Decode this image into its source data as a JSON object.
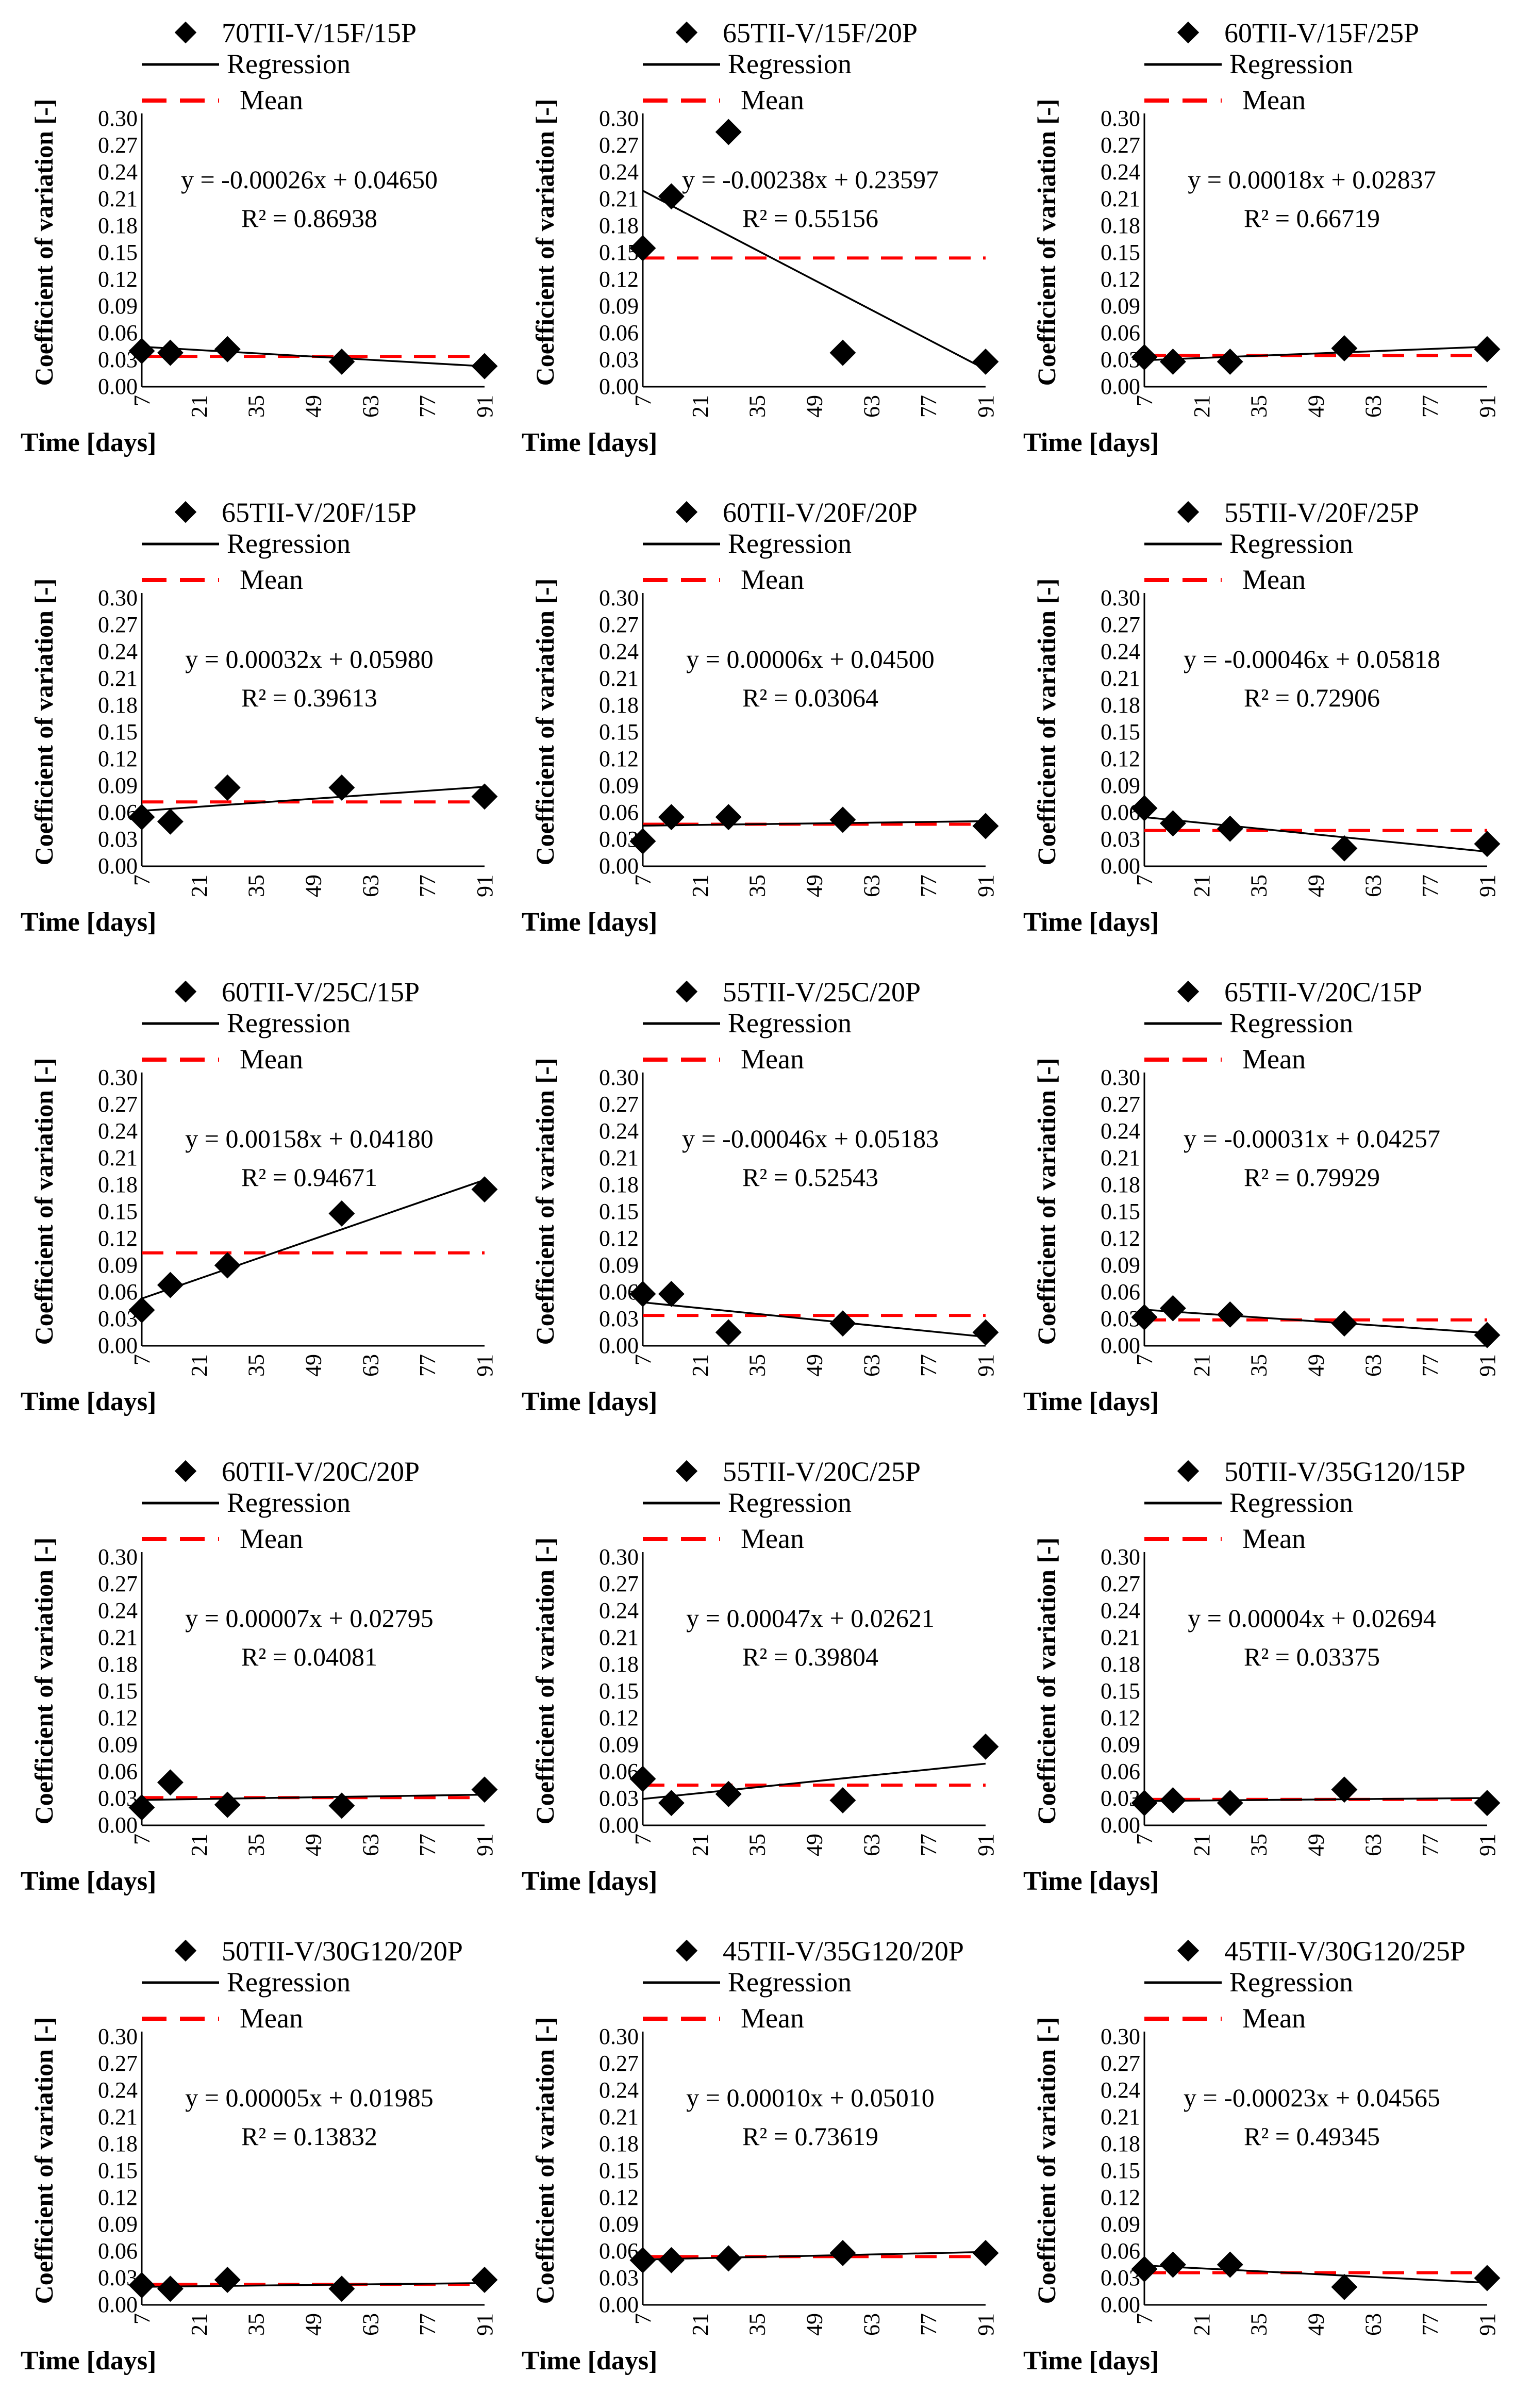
{
  "legend": {
    "points": "",
    "regression": "Regression",
    "mean": "Mean"
  },
  "axis": {
    "ylabel": "Coefficient of variation [-]",
    "xlabel": "Time [days]",
    "yticks": [
      "0.00",
      "0.03",
      "0.06",
      "0.09",
      "0.12",
      "0.15",
      "0.18",
      "0.21",
      "0.24",
      "0.27",
      "0.30"
    ],
    "xticks": [
      "7",
      "21",
      "35",
      "49",
      "63",
      "77",
      "91"
    ]
  },
  "colors": {
    "points": "#000000",
    "regression": "#000000",
    "mean": "#ff0000"
  },
  "chart_data": [
    {
      "type": "scatter",
      "title": "70TII-V/15F/15P",
      "xlabel": "Time [days]",
      "ylabel": "Coefficient of variation [-]",
      "xlim": [
        7,
        91
      ],
      "ylim": [
        0,
        0.3
      ],
      "x": [
        7,
        14,
        28,
        56,
        91
      ],
      "y": [
        0.04,
        0.038,
        0.042,
        0.028,
        0.023
      ],
      "regression": {
        "slope": -0.00026,
        "intercept": 0.0465,
        "equation": "y = -0.00026x + 0.04650",
        "r2": "R² = 0.86938"
      },
      "mean": 0.034
    },
    {
      "type": "scatter",
      "title": "65TII-V/15F/20P",
      "xlabel": "Time [days]",
      "ylabel": "Coefficient of variation [-]",
      "xlim": [
        7,
        91
      ],
      "ylim": [
        0,
        0.3
      ],
      "x": [
        7,
        14,
        28,
        56,
        91
      ],
      "y": [
        0.155,
        0.213,
        0.285,
        0.038,
        0.028
      ],
      "regression": {
        "slope": -0.00238,
        "intercept": 0.23597,
        "equation": "y = -0.00238x + 0.23597",
        "r2": "R² = 0.55156"
      },
      "mean": 0.144
    },
    {
      "type": "scatter",
      "title": "60TII-V/15F/25P",
      "xlabel": "Time [days]",
      "ylabel": "Coefficient of variation [-]",
      "xlim": [
        7,
        91
      ],
      "ylim": [
        0,
        0.3
      ],
      "x": [
        7,
        14,
        28,
        56,
        91
      ],
      "y": [
        0.033,
        0.028,
        0.028,
        0.043,
        0.042
      ],
      "regression": {
        "slope": 0.00018,
        "intercept": 0.02837,
        "equation": "y = 0.00018x + 0.02837",
        "r2": "R² = 0.66719"
      },
      "mean": 0.035
    },
    {
      "type": "scatter",
      "title": "65TII-V/20F/15P",
      "xlabel": "Time [days]",
      "ylabel": "Coefficient of variation [-]",
      "xlim": [
        7,
        91
      ],
      "ylim": [
        0,
        0.3
      ],
      "x": [
        7,
        14,
        28,
        56,
        91
      ],
      "y": [
        0.055,
        0.05,
        0.088,
        0.088,
        0.078
      ],
      "regression": {
        "slope": 0.00032,
        "intercept": 0.0598,
        "equation": "y = 0.00032x + 0.05980",
        "r2": "R² = 0.39613"
      },
      "mean": 0.072
    },
    {
      "type": "scatter",
      "title": "60TII-V/20F/20P",
      "xlabel": "Time [days]",
      "ylabel": "Coefficient of variation [-]",
      "xlim": [
        7,
        91
      ],
      "ylim": [
        0,
        0.3
      ],
      "x": [
        7,
        14,
        28,
        56,
        91
      ],
      "y": [
        0.028,
        0.055,
        0.055,
        0.052,
        0.045
      ],
      "regression": {
        "slope": 6e-05,
        "intercept": 0.045,
        "equation": "y = 0.00006x + 0.04500",
        "r2": "R² = 0.03064"
      },
      "mean": 0.047
    },
    {
      "type": "scatter",
      "title": "55TII-V/20F/25P",
      "xlabel": "Time [days]",
      "ylabel": "Coefficient of variation [-]",
      "xlim": [
        7,
        91
      ],
      "ylim": [
        0,
        0.3
      ],
      "x": [
        7,
        14,
        28,
        56,
        91
      ],
      "y": [
        0.065,
        0.048,
        0.042,
        0.02,
        0.025
      ],
      "regression": {
        "slope": -0.00046,
        "intercept": 0.05818,
        "equation": "y = -0.00046x + 0.05818",
        "r2": "R² = 0.72906"
      },
      "mean": 0.04
    },
    {
      "type": "scatter",
      "title": "60TII-V/25C/15P",
      "xlabel": "Time [days]",
      "ylabel": "Coefficient of variation [-]",
      "xlim": [
        7,
        91
      ],
      "ylim": [
        0,
        0.3
      ],
      "x": [
        7,
        14,
        28,
        56,
        91
      ],
      "y": [
        0.04,
        0.068,
        0.09,
        0.148,
        0.175
      ],
      "regression": {
        "slope": 0.00158,
        "intercept": 0.0418,
        "equation": "y = 0.00158x + 0.04180",
        "r2": "R² = 0.94671"
      },
      "mean": 0.104
    },
    {
      "type": "scatter",
      "title": "55TII-V/25C/20P",
      "xlabel": "Time [days]",
      "ylabel": "Coefficient of variation [-]",
      "xlim": [
        7,
        91
      ],
      "ylim": [
        0,
        0.3
      ],
      "x": [
        7,
        14,
        28,
        56,
        91
      ],
      "y": [
        0.058,
        0.058,
        0.015,
        0.025,
        0.015
      ],
      "regression": {
        "slope": -0.00046,
        "intercept": 0.05183,
        "equation": "y = -0.00046x + 0.05183",
        "r2": "R² = 0.52543"
      },
      "mean": 0.034
    },
    {
      "type": "scatter",
      "title": "65TII-V/20C/15P",
      "xlabel": "Time [days]",
      "ylabel": "Coefficient of variation [-]",
      "xlim": [
        7,
        91
      ],
      "ylim": [
        0,
        0.3
      ],
      "x": [
        7,
        14,
        28,
        56,
        91
      ],
      "y": [
        0.032,
        0.042,
        0.035,
        0.025,
        0.012
      ],
      "regression": {
        "slope": -0.00031,
        "intercept": 0.04257,
        "equation": "y = -0.00031x + 0.04257",
        "r2": "R² = 0.79929"
      },
      "mean": 0.029
    },
    {
      "type": "scatter",
      "title": "60TII-V/20C/20P",
      "xlabel": "Time [days]",
      "ylabel": "Coefficient of variation [-]",
      "xlim": [
        7,
        91
      ],
      "ylim": [
        0,
        0.3
      ],
      "x": [
        7,
        14,
        28,
        56,
        91
      ],
      "y": [
        0.02,
        0.048,
        0.023,
        0.022,
        0.04
      ],
      "regression": {
        "slope": 7e-05,
        "intercept": 0.02795,
        "equation": "y = 0.00007x + 0.02795",
        "r2": "R² = 0.04081"
      },
      "mean": 0.031
    },
    {
      "type": "scatter",
      "title": "55TII-V/20C/25P",
      "xlabel": "Time [days]",
      "ylabel": "Coefficient of variation [-]",
      "xlim": [
        7,
        91
      ],
      "ylim": [
        0,
        0.3
      ],
      "x": [
        7,
        14,
        28,
        56,
        91
      ],
      "y": [
        0.052,
        0.025,
        0.035,
        0.028,
        0.088
      ],
      "regression": {
        "slope": 0.00047,
        "intercept": 0.02621,
        "equation": "y = 0.00047x + 0.02621",
        "r2": "R² = 0.39804"
      },
      "mean": 0.045
    },
    {
      "type": "scatter",
      "title": "50TII-V/35G120/15P",
      "xlabel": "Time [days]",
      "ylabel": "Coefficient of variation [-]",
      "xlim": [
        7,
        91
      ],
      "ylim": [
        0,
        0.3
      ],
      "x": [
        7,
        14,
        28,
        56,
        91
      ],
      "y": [
        0.025,
        0.028,
        0.025,
        0.04,
        0.025
      ],
      "regression": {
        "slope": 4e-05,
        "intercept": 0.02694,
        "equation": "y = 0.00004x + 0.02694",
        "r2": "R² = 0.03375"
      },
      "mean": 0.029
    },
    {
      "type": "scatter",
      "title": "50TII-V/30G120/20P",
      "xlabel": "Time [days]",
      "ylabel": "Coefficient of variation [-]",
      "xlim": [
        7,
        91
      ],
      "ylim": [
        0,
        0.3
      ],
      "x": [
        7,
        14,
        28,
        56,
        91
      ],
      "y": [
        0.022,
        0.018,
        0.028,
        0.018,
        0.028
      ],
      "regression": {
        "slope": 5e-05,
        "intercept": 0.01985,
        "equation": "y = 0.00005x + 0.01985",
        "r2": "R² = 0.13832"
      },
      "mean": 0.023
    },
    {
      "type": "scatter",
      "title": "45TII-V/35G120/20P",
      "xlabel": "Time [days]",
      "ylabel": "Coefficient of variation [-]",
      "xlim": [
        7,
        91
      ],
      "ylim": [
        0,
        0.3
      ],
      "x": [
        7,
        14,
        28,
        56,
        91
      ],
      "y": [
        0.05,
        0.05,
        0.052,
        0.058,
        0.058
      ],
      "regression": {
        "slope": 0.0001,
        "intercept": 0.0501,
        "equation": "y = 0.00010x + 0.05010",
        "r2": "R² = 0.73619"
      },
      "mean": 0.054
    },
    {
      "type": "scatter",
      "title": "45TII-V/30G120/25P",
      "xlabel": "Time [days]",
      "ylabel": "Coefficient of variation [-]",
      "xlim": [
        7,
        91
      ],
      "ylim": [
        0,
        0.3
      ],
      "x": [
        7,
        14,
        28,
        56,
        91
      ],
      "y": [
        0.04,
        0.045,
        0.045,
        0.02,
        0.03
      ],
      "regression": {
        "slope": -0.00023,
        "intercept": 0.04565,
        "equation": "y = -0.00023x + 0.04565",
        "r2": "R² = 0.49345"
      },
      "mean": 0.036
    }
  ]
}
